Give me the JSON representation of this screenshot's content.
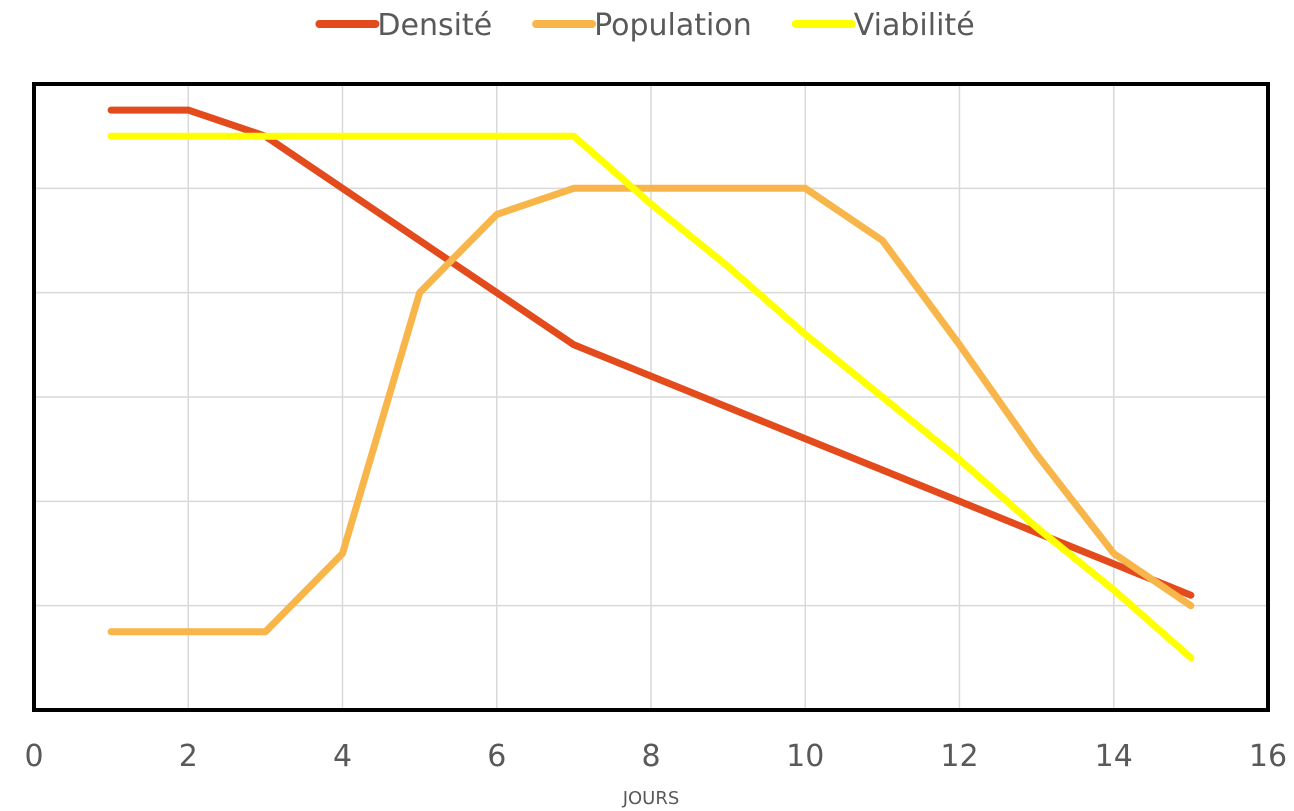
{
  "chart_data": {
    "type": "line",
    "xlabel": "JOURS",
    "ylabel": "",
    "xlim": [
      0,
      16
    ],
    "ylim": [
      0,
      120
    ],
    "x_ticks": [
      0,
      2,
      4,
      6,
      8,
      10,
      12,
      14,
      16
    ],
    "y_gridlines": [
      0,
      20,
      40,
      60,
      80,
      100,
      120
    ],
    "grid": true,
    "legend_position": "top",
    "series": [
      {
        "name": "Densité",
        "color": "#e34a1c",
        "x": [
          1,
          2,
          3,
          4,
          5,
          6,
          7,
          8,
          9,
          10,
          11,
          12,
          13,
          14,
          15
        ],
        "y": [
          115,
          115,
          110,
          100,
          90,
          80,
          70,
          64,
          58,
          52,
          46,
          40,
          34,
          28,
          22
        ]
      },
      {
        "name": "Population",
        "color": "#f8b64a",
        "x": [
          1,
          2,
          3,
          4,
          5,
          6,
          7,
          8,
          9,
          10,
          11,
          12,
          13,
          14,
          15
        ],
        "y": [
          15,
          15,
          15,
          30,
          80,
          95,
          100,
          100,
          100,
          100,
          90,
          70,
          49,
          30,
          20
        ]
      },
      {
        "name": "Viabilité",
        "color": "#ffff00",
        "x": [
          1,
          2,
          3,
          4,
          5,
          6,
          7,
          8,
          9,
          10,
          11,
          12,
          13,
          14,
          15
        ],
        "y": [
          110,
          110,
          110,
          110,
          110,
          110,
          110,
          97,
          85,
          72,
          60,
          48,
          35,
          23,
          10
        ]
      }
    ]
  }
}
